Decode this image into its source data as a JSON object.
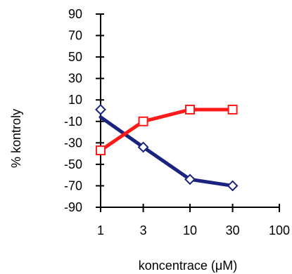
{
  "chart_data": {
    "type": "line",
    "title": "",
    "xlabel": "koncentrace (μM)",
    "ylabel": "% kontroly",
    "x_scale": "log",
    "xlim": [
      1,
      100
    ],
    "ylim": [
      -90,
      90
    ],
    "x_ticks": [
      1,
      3,
      10,
      30,
      100
    ],
    "x_tick_labels": [
      "1",
      "3",
      "10",
      "30",
      "100"
    ],
    "y_ticks": [
      90,
      70,
      50,
      30,
      10,
      -10,
      -30,
      -50,
      -70,
      -90
    ],
    "y_tick_labels": [
      "90",
      "70",
      "50",
      "30",
      "10",
      "-10",
      "-30",
      "-50",
      "-70",
      "-90"
    ],
    "grid": false,
    "legend": "none",
    "series": [
      {
        "color": "#1a237e",
        "marker": "diamond",
        "x": [
          1,
          3,
          10,
          30
        ],
        "points": [
          1,
          -34,
          -64,
          -70
        ],
        "line": [
          -6,
          -34,
          -64,
          -70
        ]
      },
      {
        "color": "#ff1a1a",
        "marker": "square",
        "x": [
          1,
          3,
          10,
          30
        ],
        "points": [
          -37,
          -10,
          1,
          1
        ],
        "line": [
          -37,
          -10,
          1,
          1
        ]
      }
    ]
  }
}
